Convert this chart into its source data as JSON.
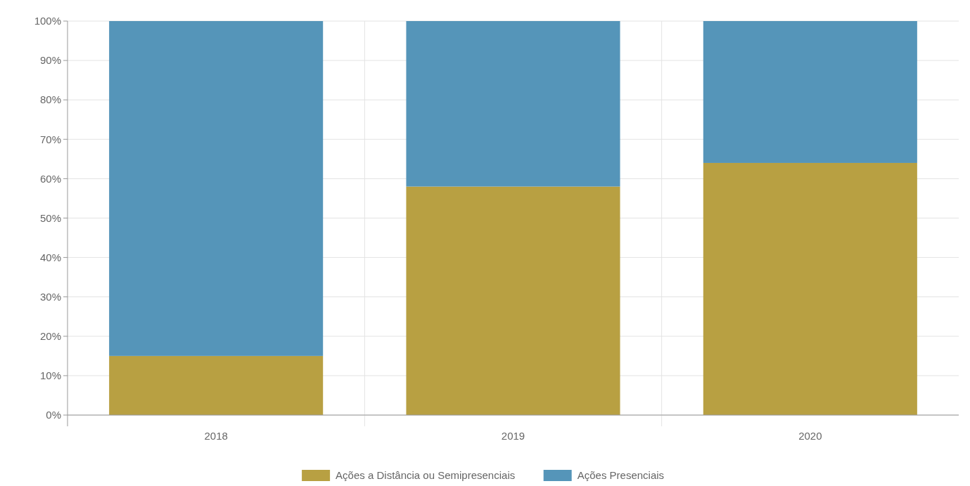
{
  "chart_data": {
    "type": "bar",
    "stacked": true,
    "categories": [
      "2018",
      "2019",
      "2020"
    ],
    "series": [
      {
        "name": "Ações a Distância ou Semipresenciais",
        "color": "#b8a042",
        "values": [
          15,
          58,
          64
        ]
      },
      {
        "name": "Ações Presenciais",
        "color": "#5595b9",
        "values": [
          85,
          42,
          36
        ]
      }
    ],
    "ylim": [
      0,
      100
    ],
    "yticks": [
      {
        "value": 0,
        "label": "0%"
      },
      {
        "value": 10,
        "label": "10%"
      },
      {
        "value": 20,
        "label": "20%"
      },
      {
        "value": 30,
        "label": "30%"
      },
      {
        "value": 40,
        "label": "40%"
      },
      {
        "value": 50,
        "label": "50%"
      },
      {
        "value": 60,
        "label": "60%"
      },
      {
        "value": 70,
        "label": "70%"
      },
      {
        "value": 80,
        "label": "80%"
      },
      {
        "value": 90,
        "label": "90%"
      },
      {
        "value": 100,
        "label": "100%"
      }
    ],
    "grid": true,
    "legend": "bottom"
  }
}
